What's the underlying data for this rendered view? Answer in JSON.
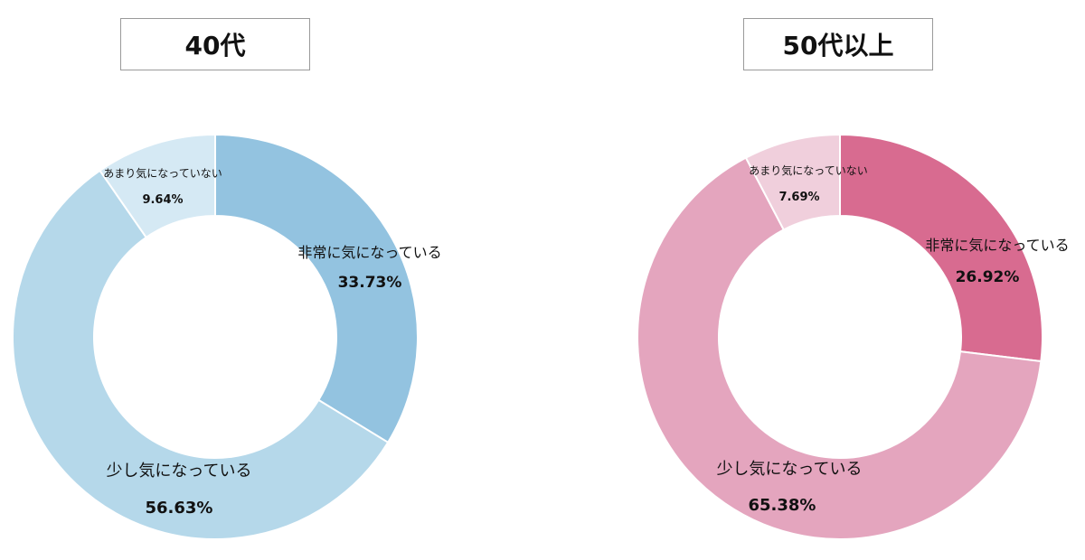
{
  "chart_data": [
    {
      "type": "pie",
      "variant": "donut",
      "title": "40代",
      "categories": [
        "非常に気になっている",
        "少し気になっている",
        "あまり気になっていない"
      ],
      "values": [
        33.73,
        56.63,
        9.64
      ],
      "value_labels": [
        "33.73%",
        "56.63%",
        "9.64%"
      ],
      "colors": [
        "#93c3e0",
        "#b5d8ea",
        "#d5e9f4"
      ]
    },
    {
      "type": "pie",
      "variant": "donut",
      "title": "50代以上",
      "categories": [
        "非常に気になっている",
        "少し気になっている",
        "あまり気になっていない"
      ],
      "values": [
        26.92,
        65.38,
        7.69
      ],
      "value_labels": [
        "26.92%",
        "65.38%",
        "7.69%"
      ],
      "colors": [
        "#d86b90",
        "#e4a5be",
        "#f0cfdc"
      ]
    }
  ]
}
